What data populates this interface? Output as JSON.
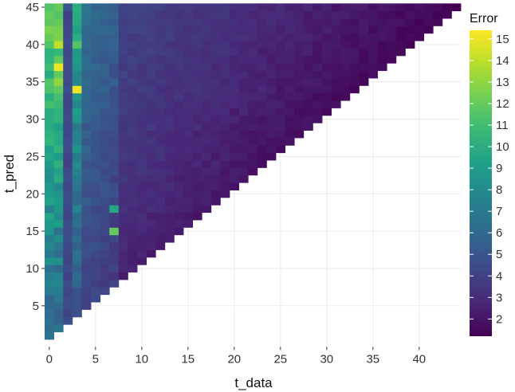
{
  "chart_data": {
    "type": "heatmap",
    "title": "",
    "xlabel": "t_data",
    "ylabel": "t_pred",
    "xlim": [
      -0.5,
      44.5
    ],
    "ylim": [
      -0.5,
      45.5
    ],
    "x_ticks": [
      0,
      5,
      10,
      15,
      20,
      25,
      30,
      35,
      40
    ],
    "y_ticks": [
      5,
      10,
      15,
      20,
      25,
      30,
      35,
      40,
      45
    ],
    "grid": true,
    "legend": {
      "title": "Error",
      "position": "right",
      "ticks": [
        2,
        3,
        4,
        5,
        6,
        7,
        8,
        9,
        10,
        11,
        12,
        13,
        14,
        15
      ],
      "range": [
        1.2,
        15.4
      ],
      "colormap": "viridis"
    },
    "mask": "only cells with t_data < t_pred are shown",
    "cells": [
      [
        0,
        5,
        6.0
      ],
      [
        0,
        10,
        6.5
      ],
      [
        0,
        15,
        8.5
      ],
      [
        0,
        17,
        9.5
      ],
      [
        0,
        20,
        9.0
      ],
      [
        0,
        25,
        9.5
      ],
      [
        0,
        30,
        10.0
      ],
      [
        0,
        35,
        11.5
      ],
      [
        0,
        40,
        11.5
      ],
      [
        0,
        45,
        11.5
      ],
      [
        1,
        5,
        6.0
      ],
      [
        1,
        10,
        6.0
      ],
      [
        1,
        15,
        6.5
      ],
      [
        1,
        20,
        8.5
      ],
      [
        1,
        25,
        9.0
      ],
      [
        1,
        30,
        10.5
      ],
      [
        1,
        35,
        13.0
      ],
      [
        1,
        37,
        15.0
      ],
      [
        1,
        40,
        14.0
      ],
      [
        1,
        45,
        12.0
      ],
      [
        2,
        5,
        4.5
      ],
      [
        2,
        10,
        4.5
      ],
      [
        2,
        15,
        4.5
      ],
      [
        2,
        20,
        4.5
      ],
      [
        2,
        25,
        4.0
      ],
      [
        2,
        30,
        4.5
      ],
      [
        2,
        35,
        4.5
      ],
      [
        2,
        40,
        4.5
      ],
      [
        2,
        45,
        5.0
      ],
      [
        3,
        10,
        5.5
      ],
      [
        3,
        15,
        5.5
      ],
      [
        3,
        20,
        6.0
      ],
      [
        3,
        25,
        7.0
      ],
      [
        3,
        30,
        8.5
      ],
      [
        3,
        34,
        15.0
      ],
      [
        3,
        40,
        11.5
      ],
      [
        3,
        45,
        10.0
      ],
      [
        7,
        15,
        12.0
      ],
      [
        7,
        18,
        9.5
      ]
    ]
  }
}
